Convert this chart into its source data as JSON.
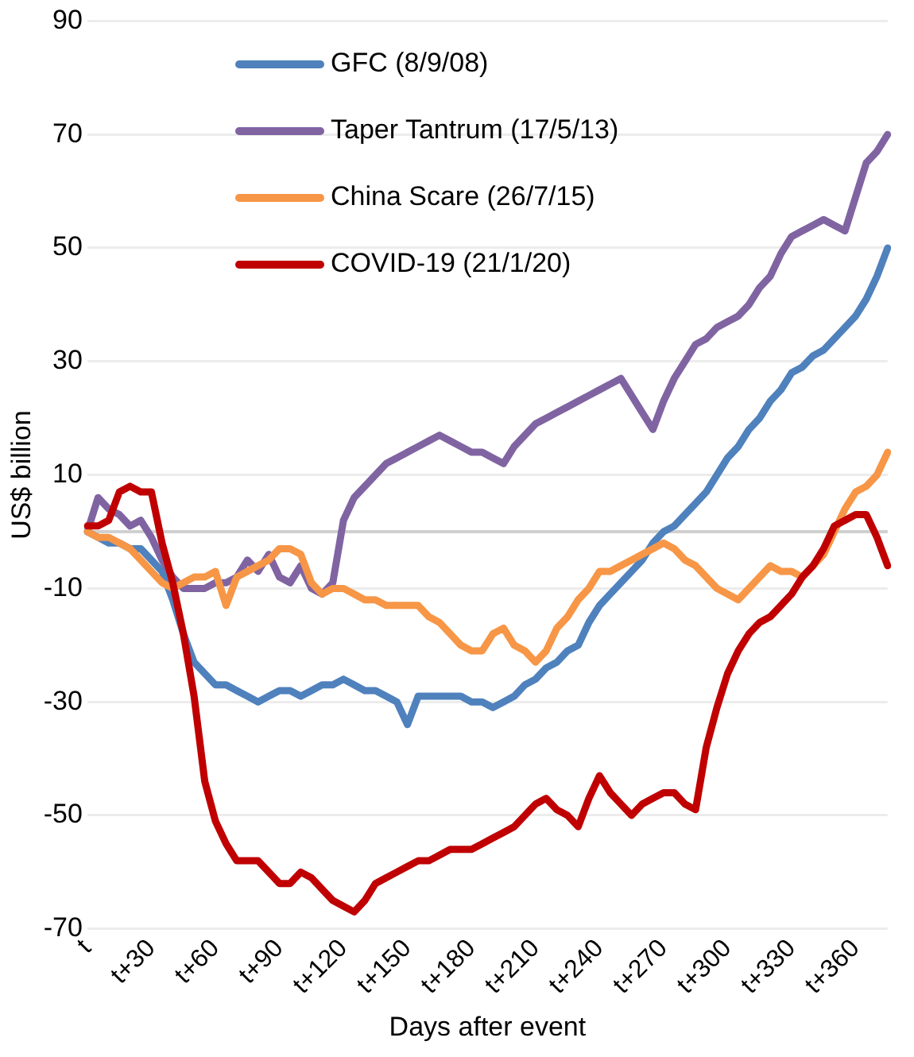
{
  "chart_data": {
    "type": "line",
    "xlabel": "Days after event",
    "ylabel": "US$ billion",
    "categories": [
      "t",
      null,
      null,
      null,
      null,
      null,
      "t+30",
      null,
      null,
      null,
      null,
      null,
      "t+60",
      null,
      null,
      null,
      null,
      null,
      "t+90",
      null,
      null,
      null,
      null,
      null,
      "t+120",
      null,
      null,
      null,
      null,
      null,
      "t+150",
      null,
      null,
      null,
      null,
      null,
      "t+180",
      null,
      null,
      null,
      null,
      null,
      "t+210",
      null,
      null,
      null,
      null,
      null,
      "t+240",
      null,
      null,
      null,
      null,
      null,
      "t+270",
      null,
      null,
      null,
      null,
      null,
      "t+300",
      null,
      null,
      null,
      null,
      null,
      "t+330",
      null,
      null,
      null,
      null,
      null,
      "t+360",
      null,
      null,
      null
    ],
    "ylim": [
      -70,
      90
    ],
    "yticks": [
      -70,
      -50,
      -30,
      -10,
      10,
      30,
      50,
      70,
      90
    ],
    "grid": "y",
    "legend": "top left",
    "marker": "none",
    "line_style": "solid",
    "ref_lines": [
      {
        "axis": "y",
        "value": 0,
        "color": "#d0d0d0"
      }
    ],
    "series": [
      {
        "name": "GFC (8/9/08)",
        "color": "#4f81bd",
        "values": [
          0,
          -1,
          -2,
          -2,
          -3,
          -3,
          -5,
          -7,
          -12,
          -18,
          -23,
          -25,
          -27,
          -27,
          -28,
          -29,
          -30,
          -29,
          -28,
          -28,
          -29,
          -28,
          -27,
          -27,
          -26,
          -27,
          -28,
          -28,
          -29,
          -30,
          -34,
          -29,
          -29,
          -29,
          -29,
          -29,
          -30,
          -30,
          -31,
          -30,
          -29,
          -27,
          -26,
          -24,
          -23,
          -21,
          -20,
          -16,
          -13,
          -11,
          -9,
          -7,
          -5,
          -2,
          0,
          1,
          3,
          5,
          7,
          10,
          13,
          15,
          18,
          20,
          23,
          25,
          28,
          29,
          31,
          32,
          34,
          36,
          38,
          41,
          45,
          50
        ]
      },
      {
        "name": "Taper Tantrum (17/5/13)",
        "color": "#8064a2",
        "values": [
          0,
          6,
          4,
          3,
          1,
          2,
          -1,
          -5,
          -8,
          -10,
          -10,
          -10,
          -9,
          -9,
          -8,
          -5,
          -7,
          -4,
          -8,
          -9,
          -6,
          -10,
          -11,
          -9,
          2,
          6,
          8,
          10,
          12,
          13,
          14,
          15,
          16,
          17,
          16,
          15,
          14,
          14,
          13,
          12,
          15,
          17,
          19,
          20,
          21,
          22,
          23,
          24,
          25,
          26,
          27,
          24,
          21,
          18,
          23,
          27,
          30,
          33,
          34,
          36,
          37,
          38,
          40,
          43,
          45,
          49,
          52,
          53,
          54,
          55,
          54,
          53,
          59,
          65,
          67,
          70
        ]
      },
      {
        "name": "China Scare (26/7/15)",
        "color": "#f79646",
        "values": [
          0,
          -1,
          -1,
          -2,
          -3,
          -5,
          -7,
          -9,
          -10,
          -9,
          -8,
          -8,
          -7,
          -13,
          -8,
          -7,
          -6,
          -5,
          -3,
          -3,
          -4,
          -9,
          -11,
          -10,
          -10,
          -11,
          -12,
          -12,
          -13,
          -13,
          -13,
          -13,
          -15,
          -16,
          -18,
          -20,
          -21,
          -21,
          -18,
          -17,
          -20,
          -21,
          -23,
          -21,
          -17,
          -15,
          -12,
          -10,
          -7,
          -7,
          -6,
          -5,
          -4,
          -3,
          -2,
          -3,
          -5,
          -6,
          -8,
          -10,
          -11,
          -12,
          -10,
          -8,
          -6,
          -7,
          -7,
          -8,
          -6,
          -4,
          0,
          4,
          7,
          8,
          10,
          14
        ]
      },
      {
        "name": "COVID-19 (21/1/20)",
        "color": "#c00000",
        "values": [
          1,
          1,
          2,
          7,
          8,
          7,
          7,
          -2,
          -9,
          -18,
          -29,
          -44,
          -51,
          -55,
          -58,
          -58,
          -58,
          -60,
          -62,
          -62,
          -60,
          -61,
          -63,
          -65,
          -66,
          -67,
          -65,
          -62,
          -61,
          -60,
          -59,
          -58,
          -58,
          -57,
          -56,
          -56,
          -56,
          -55,
          -54,
          -53,
          -52,
          -50,
          -48,
          -47,
          -49,
          -50,
          -52,
          -47,
          -43,
          -46,
          -48,
          -50,
          -48,
          -47,
          -46,
          -46,
          -48,
          -49,
          -38,
          -31,
          -25,
          -21,
          -18,
          -16,
          -15,
          -13,
          -11,
          -8,
          -6,
          -3,
          1,
          2,
          3,
          3,
          -1,
          -6
        ]
      }
    ]
  }
}
